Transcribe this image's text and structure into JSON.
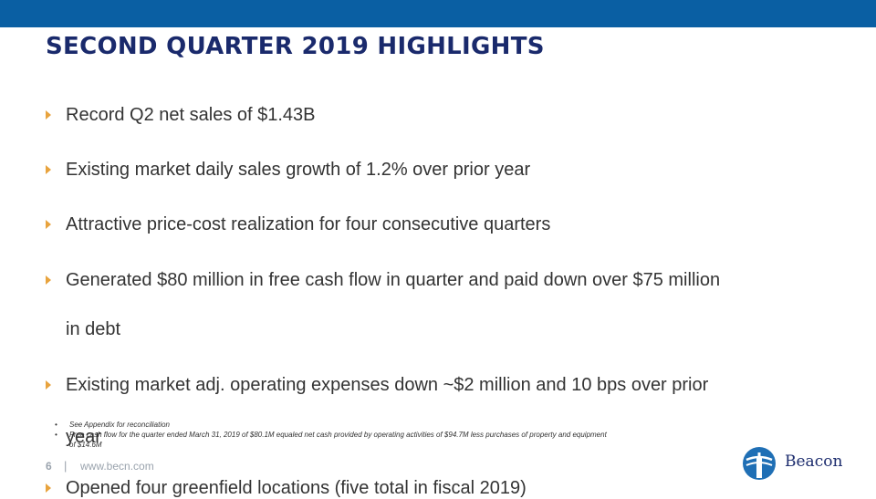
{
  "slide": {
    "title": "SECOND QUARTER 2019 HIGHLIGHTS",
    "bullets": [
      "Record Q2 net sales of $1.43B",
      "Existing market daily sales growth of 1.2% over prior year",
      "Attractive price-cost realization for four consecutive quarters",
      "Generated $80 million  in free cash flow in quarter and paid down over $75 million",
      "in debt",
      "Existing market adj. operating expenses down ~$2 million  and 10 bps over prior",
      "year",
      "Opened four greenfield locations (five total in fiscal 2019)"
    ],
    "footnotes": [
      "See Appendix for reconciliation",
      "Free cash flow for the quarter ended March 31, 2019 of $80.1M equaled net cash provided by operating activities of $94.7M less purchases of property and equipment",
      "of $14.6M"
    ],
    "page_number": "6",
    "separator": "|",
    "website": "www.becn.com",
    "logo_text": "Beacon"
  },
  "colors": {
    "top_bar": "#0a5fa3",
    "title": "#1a2a6c",
    "bullet_marker": "#e8a33d",
    "footer_text": "#9aa3ad"
  }
}
